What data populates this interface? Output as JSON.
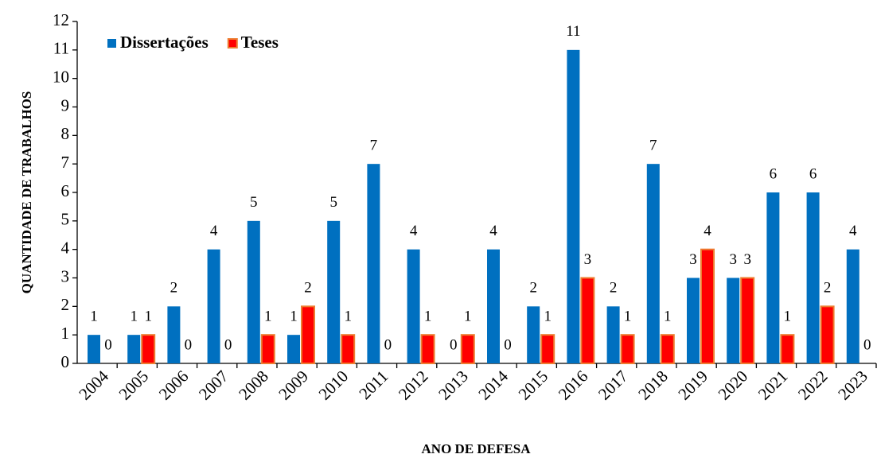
{
  "chart_data": {
    "type": "bar",
    "x_label": "ANO DE DEFESA",
    "y_label": "QUANTIDADE DE TRABALHOS",
    "categories": [
      "2004",
      "2005",
      "2006",
      "2007",
      "2008",
      "2009",
      "2010",
      "2011",
      "2012",
      "2013",
      "2014",
      "2015",
      "2016",
      "2017",
      "2018",
      "2019",
      "2020",
      "2021",
      "2022",
      "2023"
    ],
    "series": [
      {
        "name": "Dissertações",
        "color": "#0070c0",
        "values": [
          1,
          1,
          2,
          4,
          5,
          1,
          5,
          7,
          4,
          0,
          4,
          2,
          11,
          2,
          7,
          3,
          3,
          6,
          6,
          4
        ]
      },
      {
        "name": "Teses",
        "color": "#ff0000",
        "edge": "#ed7d31",
        "values": [
          0,
          1,
          0,
          0,
          1,
          2,
          1,
          0,
          1,
          1,
          0,
          1,
          3,
          1,
          1,
          4,
          3,
          1,
          2,
          0
        ]
      }
    ],
    "ylim": [
      0,
      12
    ],
    "yticks": [
      0,
      1,
      2,
      3,
      4,
      5,
      6,
      7,
      8,
      9,
      10,
      11,
      12
    ],
    "legend": "upper-left",
    "grid": false
  }
}
